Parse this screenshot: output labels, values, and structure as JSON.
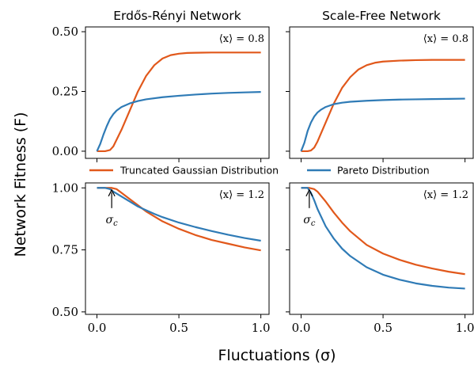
{
  "figure": {
    "ylabel": "Network Fitness (F)",
    "xlabel": "Fluctuations (σ)"
  },
  "legend": [
    {
      "label": "Truncated Gaussian Distribution",
      "color": "#e1581b"
    },
    {
      "label": "Pareto Distribution",
      "color": "#2f7bb6"
    }
  ],
  "chart_data": [
    {
      "type": "line",
      "title": "Erdős-Rényi Network",
      "annotation": "⟨x⟩ = 0.8",
      "xlim": [
        -0.07,
        1.05
      ],
      "ylim": [
        -0.03,
        0.52
      ],
      "yticks": [
        0.0,
        0.25,
        0.5
      ],
      "ytick_labels": [
        "0.00",
        "0.25",
        "0.50"
      ],
      "xticks": [
        0.0,
        0.5,
        1.0
      ],
      "xtick_labels": [],
      "series": [
        {
          "name": "Truncated Gaussian Distribution",
          "color": "#e1581b",
          "x": [
            0.0,
            0.05,
            0.08,
            0.1,
            0.15,
            0.2,
            0.25,
            0.3,
            0.35,
            0.4,
            0.45,
            0.5,
            0.55,
            0.6,
            0.7,
            0.8,
            0.9,
            1.0
          ],
          "y": [
            0.0,
            0.0,
            0.005,
            0.02,
            0.09,
            0.17,
            0.25,
            0.315,
            0.36,
            0.388,
            0.402,
            0.408,
            0.411,
            0.412,
            0.413,
            0.413,
            0.413,
            0.413
          ]
        },
        {
          "name": "Pareto Distribution",
          "color": "#2f7bb6",
          "x": [
            0.0,
            0.02,
            0.04,
            0.06,
            0.08,
            0.1,
            0.12,
            0.15,
            0.2,
            0.25,
            0.3,
            0.4,
            0.5,
            0.6,
            0.7,
            0.8,
            0.9,
            1.0
          ],
          "y": [
            0.0,
            0.03,
            0.07,
            0.105,
            0.135,
            0.155,
            0.17,
            0.185,
            0.2,
            0.21,
            0.217,
            0.226,
            0.232,
            0.237,
            0.241,
            0.244,
            0.246,
            0.248
          ]
        }
      ]
    },
    {
      "type": "line",
      "title": "Scale-Free Network",
      "annotation": "⟨x⟩ = 0.8",
      "xlim": [
        -0.07,
        1.05
      ],
      "ylim": [
        -0.03,
        0.52
      ],
      "yticks": [
        0.0,
        0.25,
        0.5
      ],
      "ytick_labels": [],
      "xticks": [
        0.0,
        0.5,
        1.0
      ],
      "xtick_labels": [],
      "series": [
        {
          "name": "Truncated Gaussian Distribution",
          "color": "#e1581b",
          "x": [
            0.0,
            0.04,
            0.06,
            0.08,
            0.1,
            0.15,
            0.2,
            0.25,
            0.3,
            0.35,
            0.4,
            0.45,
            0.5,
            0.6,
            0.7,
            0.8,
            0.9,
            1.0
          ],
          "y": [
            0.0,
            0.0,
            0.003,
            0.015,
            0.04,
            0.12,
            0.2,
            0.265,
            0.31,
            0.342,
            0.36,
            0.37,
            0.375,
            0.379,
            0.381,
            0.382,
            0.382,
            0.382
          ]
        },
        {
          "name": "Pareto Distribution",
          "color": "#2f7bb6",
          "x": [
            0.0,
            0.02,
            0.04,
            0.06,
            0.08,
            0.1,
            0.12,
            0.15,
            0.2,
            0.25,
            0.3,
            0.4,
            0.5,
            0.6,
            0.7,
            0.8,
            0.9,
            1.0
          ],
          "y": [
            0.0,
            0.035,
            0.085,
            0.12,
            0.145,
            0.162,
            0.173,
            0.185,
            0.197,
            0.203,
            0.207,
            0.211,
            0.214,
            0.216,
            0.217,
            0.218,
            0.219,
            0.22
          ]
        }
      ]
    },
    {
      "type": "line",
      "annotation": "⟨x⟩ = 1.2",
      "marker_label": "σc",
      "marker_x": 0.09,
      "xlim": [
        -0.07,
        1.05
      ],
      "ylim": [
        0.49,
        1.02
      ],
      "yticks": [
        0.5,
        0.75,
        1.0
      ],
      "ytick_labels": [
        "0.50",
        "0.75",
        "1.00"
      ],
      "xticks": [
        0.0,
        0.5,
        1.0
      ],
      "xtick_labels": [
        "0.0",
        "0.5",
        "1.0"
      ],
      "series": [
        {
          "name": "Truncated Gaussian Distribution",
          "color": "#e1581b",
          "x": [
            0.0,
            0.05,
            0.09,
            0.12,
            0.15,
            0.2,
            0.25,
            0.3,
            0.35,
            0.4,
            0.5,
            0.6,
            0.7,
            0.8,
            0.9,
            1.0
          ],
          "y": [
            1.0,
            1.0,
            1.0,
            0.995,
            0.98,
            0.955,
            0.93,
            0.905,
            0.885,
            0.865,
            0.835,
            0.81,
            0.79,
            0.775,
            0.76,
            0.748
          ]
        },
        {
          "name": "Pareto Distribution",
          "color": "#2f7bb6",
          "x": [
            0.0,
            0.05,
            0.08,
            0.1,
            0.15,
            0.2,
            0.25,
            0.3,
            0.35,
            0.4,
            0.5,
            0.6,
            0.7,
            0.8,
            0.9,
            1.0
          ],
          "y": [
            1.0,
            1.0,
            0.995,
            0.985,
            0.965,
            0.945,
            0.925,
            0.91,
            0.895,
            0.882,
            0.86,
            0.842,
            0.826,
            0.811,
            0.798,
            0.787
          ]
        }
      ]
    },
    {
      "type": "line",
      "annotation": "⟨x⟩ = 1.2",
      "marker_label": "σc",
      "marker_x": 0.05,
      "xlim": [
        -0.07,
        1.05
      ],
      "ylim": [
        0.49,
        1.02
      ],
      "yticks": [
        0.5,
        0.75,
        1.0
      ],
      "ytick_labels": [],
      "xticks": [
        0.0,
        0.5,
        1.0
      ],
      "xtick_labels": [
        "0.0",
        "0.5",
        "1.0"
      ],
      "series": [
        {
          "name": "Truncated Gaussian Distribution",
          "color": "#e1581b",
          "x": [
            0.0,
            0.05,
            0.08,
            0.1,
            0.15,
            0.2,
            0.25,
            0.3,
            0.4,
            0.5,
            0.6,
            0.7,
            0.8,
            0.9,
            1.0
          ],
          "y": [
            1.0,
            1.0,
            0.995,
            0.985,
            0.945,
            0.9,
            0.86,
            0.825,
            0.77,
            0.735,
            0.71,
            0.69,
            0.675,
            0.662,
            0.652
          ]
        },
        {
          "name": "Pareto Distribution",
          "color": "#2f7bb6",
          "x": [
            0.0,
            0.04,
            0.06,
            0.08,
            0.1,
            0.15,
            0.2,
            0.25,
            0.3,
            0.4,
            0.5,
            0.6,
            0.7,
            0.8,
            0.9,
            1.0
          ],
          "y": [
            1.0,
            1.0,
            0.98,
            0.95,
            0.915,
            0.845,
            0.795,
            0.755,
            0.725,
            0.68,
            0.65,
            0.63,
            0.615,
            0.605,
            0.598,
            0.594
          ]
        }
      ]
    }
  ]
}
